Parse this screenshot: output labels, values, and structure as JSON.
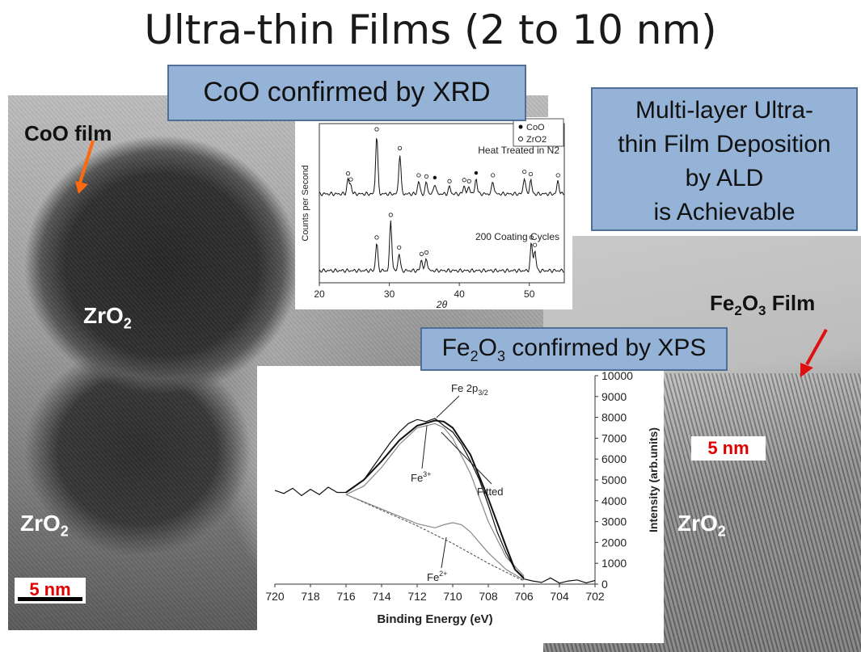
{
  "title": "Ultra-thin Films (2 to 10 nm)",
  "labels": {
    "coo_film": "CoO film",
    "zro2": "ZrO",
    "sub2": "2",
    "fe2o3_film_pre": "Fe",
    "fe2o3_film_mid": "O",
    "fe2o3_film_post": " Film",
    "scale_left": "5 nm",
    "scale_right": "5 nm"
  },
  "callouts": {
    "xrd": "CoO confirmed by  XRD",
    "xps_pre": "Fe",
    "xps_mid": "O",
    "xps_post": " confirmed by XPS",
    "multilayer": [
      "Multi-layer Ultra-",
      "thin Film Deposition",
      "by ALD",
      "is Achievable"
    ]
  },
  "colors": {
    "callout_fill": "#95b3d7",
    "arrow_orange": "#ff6a10",
    "arrow_red": "#e01010",
    "scale_red": "#e00000"
  },
  "chart_data": [
    {
      "type": "line",
      "name": "XRD",
      "xlabel": "2θ",
      "ylabel": "Counts per Second",
      "xlim": [
        20,
        55
      ],
      "xticks": [
        20,
        30,
        40,
        50
      ],
      "legend": [
        "CoO",
        "ZrO2"
      ],
      "legend_markers": [
        "filled-dot",
        "open-circle"
      ],
      "legend_position": "top-right",
      "series": [
        {
          "name": "Heat Treated in N2",
          "peaks": [
            {
              "x": 24.1,
              "h": 0.25,
              "marker": "open"
            },
            {
              "x": 24.5,
              "h": 0.15,
              "marker": "open"
            },
            {
              "x": 28.2,
              "h": 1.0,
              "marker": "open"
            },
            {
              "x": 31.5,
              "h": 0.68,
              "marker": "open"
            },
            {
              "x": 34.2,
              "h": 0.22,
              "marker": "open"
            },
            {
              "x": 35.3,
              "h": 0.2,
              "marker": "open"
            },
            {
              "x": 36.5,
              "h": 0.18,
              "marker": "filled"
            },
            {
              "x": 38.6,
              "h": 0.12,
              "marker": "open"
            },
            {
              "x": 40.7,
              "h": 0.14,
              "marker": "open"
            },
            {
              "x": 41.4,
              "h": 0.12,
              "marker": "open"
            },
            {
              "x": 42.4,
              "h": 0.26,
              "marker": "filled"
            },
            {
              "x": 44.8,
              "h": 0.22,
              "marker": "open"
            },
            {
              "x": 49.3,
              "h": 0.28,
              "marker": "open"
            },
            {
              "x": 50.2,
              "h": 0.24,
              "marker": "open"
            },
            {
              "x": 54.1,
              "h": 0.22,
              "marker": "open"
            }
          ]
        },
        {
          "name": "200 Coating Cycles",
          "peaks": [
            {
              "x": 28.2,
              "h": 0.55,
              "marker": "open"
            },
            {
              "x": 30.2,
              "h": 1.0,
              "marker": "open"
            },
            {
              "x": 31.4,
              "h": 0.35,
              "marker": "open"
            },
            {
              "x": 34.6,
              "h": 0.22,
              "marker": "open"
            },
            {
              "x": 35.3,
              "h": 0.25,
              "marker": "open"
            },
            {
              "x": 50.3,
              "h": 0.55,
              "marker": "open"
            },
            {
              "x": 50.8,
              "h": 0.4,
              "marker": "open"
            }
          ]
        }
      ]
    },
    {
      "type": "line",
      "name": "XPS",
      "xlabel": "Binding Energy (eV)",
      "ylabel": "Intensity (arb.units)",
      "xlim": [
        720,
        702
      ],
      "ylim": [
        0,
        10000
      ],
      "xticks": [
        720,
        718,
        716,
        714,
        712,
        710,
        708,
        706,
        704,
        702
      ],
      "yticks": [
        0,
        1000,
        2000,
        3000,
        4000,
        5000,
        6000,
        7000,
        8000,
        9000,
        10000
      ],
      "annotations": {
        "fe2p_pre": "Fe 2p",
        "fe2p_sub": "3/2",
        "fe3": "Fe",
        "fe3_sup": "3+",
        "fe2": "Fe",
        "fe2_sup": "2+",
        "fitted": "Fitted"
      },
      "raw": {
        "x": [
          720,
          719.5,
          719,
          718.5,
          718,
          717.5,
          717,
          716.5,
          716,
          715.5,
          715,
          714.5,
          714,
          713.5,
          713,
          712.5,
          712,
          711.5,
          711,
          710.5,
          710,
          709.5,
          709,
          708.5,
          708,
          707.5,
          707,
          706.5,
          706,
          705.5,
          705,
          704.5,
          704,
          703.5,
          703,
          702.5,
          702
        ],
        "y": [
          4500,
          4350,
          4600,
          4250,
          4550,
          4300,
          4650,
          4400,
          4400,
          4700,
          5000,
          5600,
          6200,
          6800,
          7300,
          7700,
          7900,
          7800,
          7950,
          7600,
          7300,
          6700,
          5900,
          5000,
          3800,
          2500,
          1500,
          700,
          250,
          150,
          80,
          300,
          50,
          150,
          200,
          60,
          180
        ]
      },
      "fitted": {
        "x": [
          716,
          715,
          714,
          713,
          712,
          711,
          710.5,
          710,
          709,
          708,
          707,
          706.5,
          706
        ],
        "y": [
          4400,
          5000,
          5900,
          6900,
          7600,
          7850,
          7800,
          7500,
          6200,
          4100,
          1800,
          700,
          300
        ]
      },
      "fe3_component": {
        "x": [
          716,
          715,
          714,
          713,
          712,
          711,
          710.5,
          710,
          709,
          708,
          707,
          706
        ],
        "y": [
          4300,
          4700,
          5600,
          6700,
          7500,
          7700,
          7500,
          7000,
          5300,
          3000,
          1300,
          400
        ]
      },
      "fe2_component": {
        "x": [
          716,
          714,
          712,
          711,
          710.5,
          710,
          709.5,
          709,
          708,
          707,
          706
        ],
        "y": [
          4300,
          3600,
          2900,
          2700,
          2850,
          2950,
          2850,
          2500,
          1500,
          700,
          200
        ]
      },
      "baseline": {
        "x": [
          716,
          712,
          710,
          708,
          706
        ],
        "y": [
          4300,
          2800,
          1950,
          1000,
          150
        ]
      }
    }
  ]
}
